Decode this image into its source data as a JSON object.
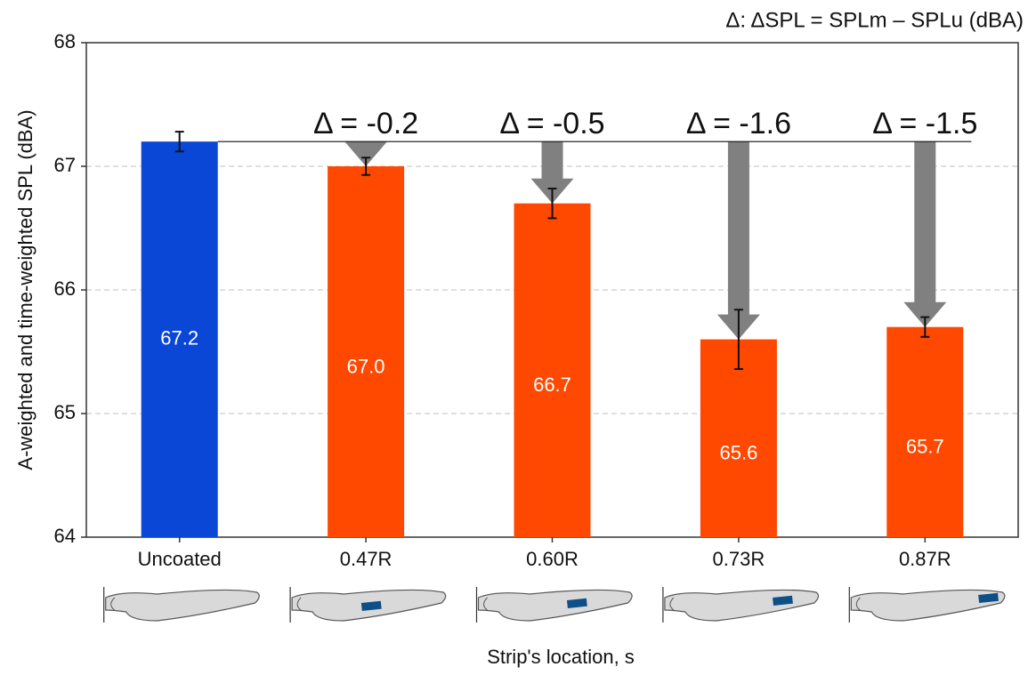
{
  "chart_data": {
    "type": "bar",
    "header": "Δ: ΔSPL = SPLm – SPLu (dBA)",
    "y_label": "A-weighted and time-weighted SPL (dBA)",
    "x_label": "Strip's location, s",
    "categories": [
      "Uncoated",
      "0.47R",
      "0.60R",
      "0.73R",
      "0.87R"
    ],
    "values": [
      67.2,
      67.0,
      66.7,
      65.6,
      65.7
    ],
    "value_labels": [
      "67.2",
      "67.0",
      "66.7",
      "65.6",
      "65.7"
    ],
    "errors": [
      0.08,
      0.07,
      0.12,
      0.24,
      0.08
    ],
    "colors": [
      "#0a47d6",
      "#ff4800",
      "#ff4800",
      "#ff4800",
      "#ff4800"
    ],
    "annotations": [
      null,
      "Δ = -0.2",
      "Δ = -0.5",
      "Δ = -1.6",
      "Δ = -1.5"
    ],
    "ylim": [
      64,
      68
    ],
    "yticks": [
      64,
      65,
      66,
      67,
      68
    ],
    "grid": true
  }
}
